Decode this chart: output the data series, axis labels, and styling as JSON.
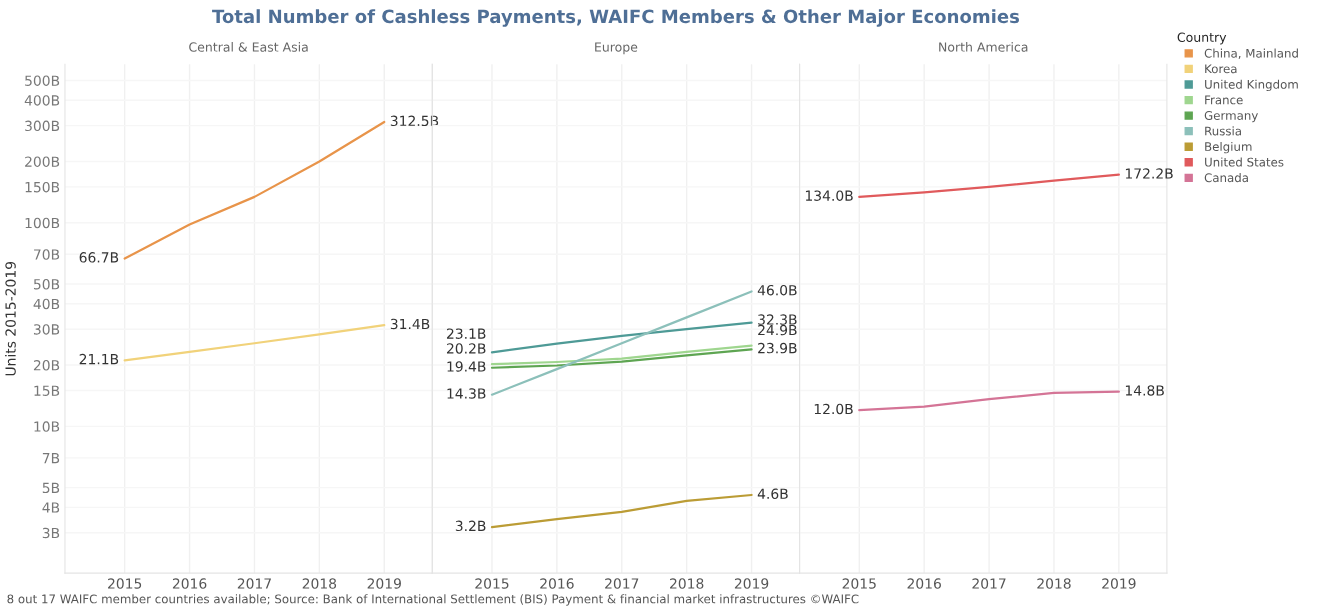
{
  "chart_data": [
    {
      "type": "line",
      "title": "Total Number of Cashless Payments, WAIFC Members & Other Major Economies",
      "subtitle": "Central & East Asia",
      "ylabel": "Units 2015-2019",
      "legend": "right",
      "categories": [
        "2015",
        "2016",
        "2017",
        "2018",
        "2019"
      ],
      "log": true,
      "ylim": [
        1.9,
        600
      ],
      "yticks": [
        {
          "value": 3,
          "label": "3B"
        },
        {
          "value": 4,
          "label": "4B"
        },
        {
          "value": 5,
          "label": "5B"
        },
        {
          "value": 7,
          "label": "7B"
        },
        {
          "value": 10,
          "label": "10B"
        },
        {
          "value": 15,
          "label": "15B"
        },
        {
          "value": 20,
          "label": "20B"
        },
        {
          "value": 30,
          "label": "30B"
        },
        {
          "value": 40,
          "label": "40B"
        },
        {
          "value": 50,
          "label": "50B"
        },
        {
          "value": 70,
          "label": "70B"
        },
        {
          "value": 100,
          "label": "100B"
        },
        {
          "value": 150,
          "label": "150B"
        },
        {
          "value": 200,
          "label": "200B"
        },
        {
          "value": 300,
          "label": "300B"
        },
        {
          "value": 400,
          "label": "400B"
        },
        {
          "value": 500,
          "label": "500B"
        }
      ],
      "grid": true,
      "marker": "none",
      "line_style": "solid",
      "annotations": [
        "8 out 17 WAIFC member countries available; Source: Bank of International Settlement (BIS) Payment & financial market infrastructures ©WAIFC"
      ],
      "series": [
        {
          "name": "China, Mainland",
          "color": "#e8944a",
          "values": [
            66.7,
            98,
            134,
            200,
            312.5
          ],
          "value_labels": [
            "66.7B",
            null,
            null,
            null,
            "312.5B"
          ]
        },
        {
          "name": "Korea",
          "color": "#f1d27a",
          "values": [
            21.1,
            23.2,
            25.6,
            28.3,
            31.4
          ],
          "value_labels": [
            "21.1B",
            null,
            null,
            null,
            "31.4B"
          ]
        }
      ]
    },
    {
      "type": "line",
      "subtitle": "Europe",
      "categories": [
        "2015",
        "2016",
        "2017",
        "2018",
        "2019"
      ],
      "log": true,
      "ylim": [
        1.9,
        600
      ],
      "yticks": [
        3,
        4,
        5,
        7,
        10,
        15,
        20,
        30,
        40,
        50,
        70,
        100,
        150,
        200,
        300,
        400,
        500
      ],
      "tick_labels": "x",
      "grid": true,
      "marker": "none",
      "line_style": "solid",
      "legend": "right",
      "series": [
        {
          "name": "United Kingdom",
          "color": "#4e9a96",
          "values": [
            23.1,
            25.5,
            27.8,
            30.0,
            32.3
          ],
          "value_labels": [
            "23.1B",
            null,
            null,
            null,
            "32.3B"
          ]
        },
        {
          "name": "France",
          "color": "#9fd68f",
          "values": [
            20.2,
            20.7,
            21.5,
            23.2,
            24.9
          ],
          "value_labels": [
            "20.2B",
            null,
            null,
            null,
            "24.9B"
          ]
        },
        {
          "name": "Germany",
          "color": "#5ea552",
          "values": [
            19.4,
            19.9,
            20.8,
            22.3,
            23.9
          ],
          "value_labels": [
            "19.4B",
            null,
            null,
            null,
            "23.9B"
          ]
        },
        {
          "name": "Russia",
          "color": "#8cc0ba",
          "values": [
            14.3,
            19.1,
            25.6,
            34.3,
            46.0
          ],
          "value_labels": [
            "14.3B",
            null,
            null,
            null,
            "46.0B"
          ]
        },
        {
          "name": "Belgium",
          "color": "#bb9c35",
          "values": [
            3.2,
            3.5,
            3.8,
            4.3,
            4.6
          ],
          "value_labels": [
            "3.2B",
            null,
            null,
            null,
            "4.6B"
          ]
        }
      ]
    },
    {
      "type": "line",
      "subtitle": "North America",
      "categories": [
        "2015",
        "2016",
        "2017",
        "2018",
        "2019"
      ],
      "log": true,
      "ylim": [
        1.9,
        600
      ],
      "yticks": [
        3,
        4,
        5,
        7,
        10,
        15,
        20,
        30,
        40,
        50,
        70,
        100,
        150,
        200,
        300,
        400,
        500
      ],
      "tick_labels": "x",
      "grid": true,
      "marker": "none",
      "line_style": "solid",
      "legend": "right",
      "legend_title": "Country",
      "series": [
        {
          "name": "United States",
          "color": "#e05a5c",
          "values": [
            134.0,
            141,
            150,
            161,
            172.2
          ],
          "value_labels": [
            "134.0B",
            null,
            null,
            null,
            "172.2B"
          ]
        },
        {
          "name": "Canada",
          "color": "#d47496",
          "values": [
            12.0,
            12.5,
            13.6,
            14.6,
            14.8
          ],
          "value_labels": [
            "12.0B",
            null,
            null,
            null,
            "14.8B"
          ]
        }
      ]
    }
  ]
}
